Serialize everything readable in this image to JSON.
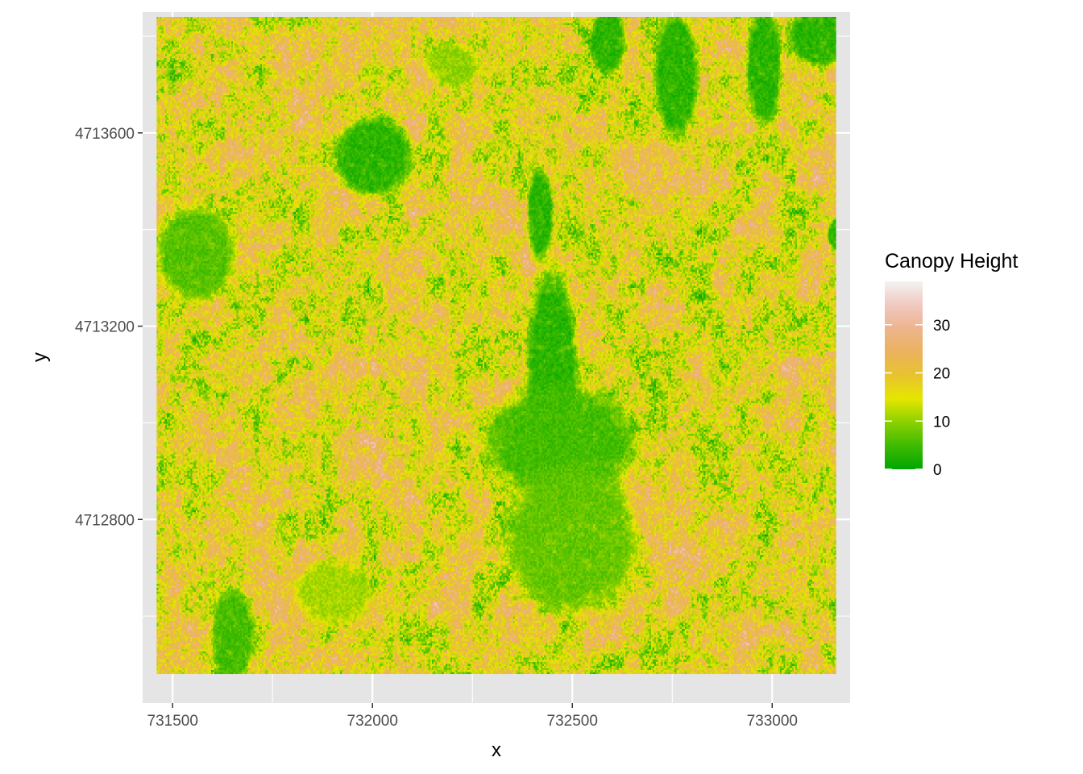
{
  "chart_data": {
    "type": "heatmap",
    "title": "",
    "xlabel": "x",
    "ylabel": "y",
    "xlim": [
      731425,
      733195
    ],
    "ylim": [
      4712420,
      4713850
    ],
    "raster_extent": {
      "x": [
        731460,
        733160
      ],
      "y": [
        4712480,
        4713840
      ]
    },
    "x_ticks": [
      731500,
      732000,
      732500,
      733000
    ],
    "x_tick_labels": [
      "731500",
      "732000",
      "732500",
      "733000"
    ],
    "x_minor_ticks": [
      731750,
      732250,
      732750
    ],
    "y_ticks": [
      4712800,
      4713200,
      4713600
    ],
    "y_tick_labels": [
      "4712800",
      "4713200",
      "4713600"
    ],
    "y_minor_ticks": [
      4712600,
      4713000,
      4713400,
      4713800
    ],
    "grid": true,
    "panel_background": "#e5e5e5",
    "legend": {
      "title": "Canopy Height",
      "placement": "right",
      "range": [
        0,
        39
      ],
      "breaks": [
        0,
        10,
        20,
        30
      ],
      "break_labels": [
        "0",
        "10",
        "20",
        "30"
      ],
      "colors": [
        "#00a600",
        "#3ebb00",
        "#8bd000",
        "#e6e600",
        "#e8c32e",
        "#ebb25e",
        "#edb48e",
        "#f0c9c0",
        "#f2f2f2"
      ]
    },
    "low_canopy_patches": [
      {
        "x": 732000,
        "y": 4713550,
        "rx": 90,
        "ry": 75,
        "height": 1
      },
      {
        "x": 731560,
        "y": 4713350,
        "rx": 90,
        "ry": 90,
        "height": 4
      },
      {
        "x": 732420,
        "y": 4713430,
        "rx": 30,
        "ry": 90,
        "height": 1
      },
      {
        "x": 732450,
        "y": 4713080,
        "rx": 60,
        "ry": 220,
        "height": 1
      },
      {
        "x": 732470,
        "y": 4712960,
        "rx": 170,
        "ry": 110,
        "height": 3
      },
      {
        "x": 732500,
        "y": 4712760,
        "rx": 150,
        "ry": 140,
        "height": 5
      },
      {
        "x": 732760,
        "y": 4713720,
        "rx": 50,
        "ry": 120,
        "height": 1
      },
      {
        "x": 732980,
        "y": 4713740,
        "rx": 40,
        "ry": 110,
        "height": 1
      },
      {
        "x": 733120,
        "y": 4713800,
        "rx": 70,
        "ry": 60,
        "height": 1
      },
      {
        "x": 732590,
        "y": 4713790,
        "rx": 40,
        "ry": 60,
        "height": 1
      },
      {
        "x": 731650,
        "y": 4712560,
        "rx": 50,
        "ry": 90,
        "height": 3
      },
      {
        "x": 732200,
        "y": 4713740,
        "rx": 60,
        "ry": 40,
        "height": 8
      },
      {
        "x": 731900,
        "y": 4712650,
        "rx": 90,
        "ry": 60,
        "height": 9
      },
      {
        "x": 733160,
        "y": 4713390,
        "rx": 20,
        "ry": 30,
        "height": 1
      }
    ]
  }
}
